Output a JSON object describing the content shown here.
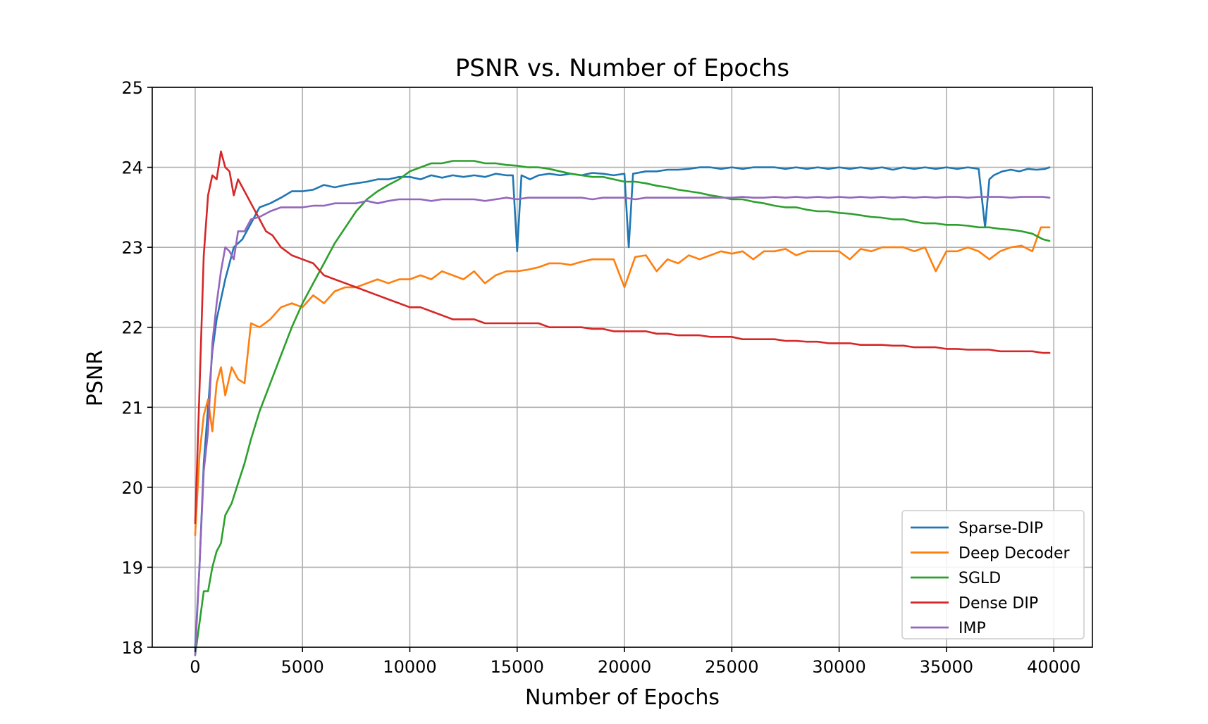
{
  "chart_data": {
    "type": "line",
    "title": "PSNR vs. Number of Epochs",
    "xlabel": "Number of Epochs",
    "ylabel": "PSNR",
    "xlim": [
      -2000,
      41800
    ],
    "ylim": [
      18,
      25
    ],
    "xticks": [
      0,
      5000,
      10000,
      15000,
      20000,
      25000,
      30000,
      35000,
      40000
    ],
    "yticks": [
      18,
      19,
      20,
      21,
      22,
      23,
      24,
      25
    ],
    "grid": true,
    "legend_position": "lower-right",
    "series": [
      {
        "name": "Sparse-DIP",
        "color": "#1f77b4",
        "x": [
          0,
          200,
          400,
          600,
          800,
          1000,
          1400,
          1800,
          2200,
          2600,
          3000,
          3500,
          4000,
          4500,
          5000,
          5500,
          6000,
          6500,
          7000,
          7500,
          8000,
          8500,
          9000,
          9500,
          10000,
          10500,
          11000,
          11500,
          12000,
          12500,
          13000,
          13500,
          14000,
          14500,
          14800,
          15000,
          15200,
          15600,
          16000,
          16500,
          17000,
          17500,
          18000,
          18500,
          19000,
          19500,
          20000,
          20200,
          20400,
          21000,
          21500,
          22000,
          22500,
          23000,
          23500,
          24000,
          24500,
          25000,
          25500,
          26000,
          26500,
          27000,
          27500,
          28000,
          28500,
          29000,
          29500,
          30000,
          30500,
          31000,
          31500,
          32000,
          32500,
          33000,
          33500,
          34000,
          34500,
          35000,
          35500,
          36000,
          36500,
          36800,
          37000,
          37200,
          37600,
          38000,
          38400,
          38800,
          39200,
          39600,
          39800
        ],
        "values": [
          18.0,
          19.0,
          20.3,
          21.0,
          21.7,
          22.1,
          22.6,
          23.0,
          23.1,
          23.3,
          23.5,
          23.55,
          23.62,
          23.7,
          23.7,
          23.72,
          23.78,
          23.75,
          23.78,
          23.8,
          23.82,
          23.85,
          23.85,
          23.88,
          23.88,
          23.85,
          23.9,
          23.87,
          23.9,
          23.88,
          23.9,
          23.88,
          23.92,
          23.9,
          23.9,
          22.95,
          23.9,
          23.85,
          23.9,
          23.92,
          23.9,
          23.92,
          23.9,
          23.93,
          23.92,
          23.9,
          23.92,
          23.0,
          23.92,
          23.95,
          23.95,
          23.97,
          23.97,
          23.98,
          24.0,
          24.0,
          23.98,
          24.0,
          23.98,
          24.0,
          24.0,
          24.0,
          23.98,
          24.0,
          23.98,
          24.0,
          23.98,
          24.0,
          23.98,
          24.0,
          23.98,
          24.0,
          23.97,
          24.0,
          23.98,
          24.0,
          23.98,
          24.0,
          23.98,
          24.0,
          23.98,
          23.25,
          23.85,
          23.9,
          23.95,
          23.97,
          23.95,
          23.98,
          23.97,
          23.98,
          24.0
        ]
      },
      {
        "name": "Deep Decoder",
        "color": "#ff7f0e",
        "x": [
          0,
          200,
          400,
          600,
          800,
          1000,
          1200,
          1400,
          1700,
          2000,
          2300,
          2600,
          3000,
          3500,
          4000,
          4500,
          5000,
          5500,
          6000,
          6500,
          7000,
          7500,
          8000,
          8500,
          9000,
          9500,
          10000,
          10500,
          11000,
          11500,
          12000,
          12500,
          13000,
          13500,
          14000,
          14500,
          15000,
          15500,
          16000,
          16500,
          17000,
          17500,
          18000,
          18500,
          19000,
          19500,
          20000,
          20500,
          21000,
          21500,
          22000,
          22500,
          23000,
          23500,
          24000,
          24500,
          25000,
          25500,
          26000,
          26500,
          27000,
          27500,
          28000,
          28500,
          29000,
          29500,
          30000,
          30500,
          31000,
          31500,
          32000,
          32500,
          33000,
          33500,
          34000,
          34500,
          35000,
          35500,
          36000,
          36500,
          37000,
          37500,
          38000,
          38500,
          39000,
          39400,
          39600,
          39800
        ],
        "values": [
          19.4,
          20.4,
          20.9,
          21.1,
          20.7,
          21.3,
          21.5,
          21.15,
          21.5,
          21.35,
          21.3,
          22.05,
          22.0,
          22.1,
          22.25,
          22.3,
          22.25,
          22.4,
          22.3,
          22.45,
          22.5,
          22.5,
          22.55,
          22.6,
          22.55,
          22.6,
          22.6,
          22.65,
          22.6,
          22.7,
          22.65,
          22.6,
          22.7,
          22.55,
          22.65,
          22.7,
          22.7,
          22.72,
          22.75,
          22.8,
          22.8,
          22.78,
          22.82,
          22.85,
          22.85,
          22.85,
          22.5,
          22.88,
          22.9,
          22.7,
          22.85,
          22.8,
          22.9,
          22.85,
          22.9,
          22.95,
          22.92,
          22.95,
          22.85,
          22.95,
          22.95,
          22.98,
          22.9,
          22.95,
          22.95,
          22.95,
          22.95,
          22.85,
          22.98,
          22.95,
          23.0,
          23.0,
          23.0,
          22.95,
          23.0,
          22.7,
          22.95,
          22.95,
          23.0,
          22.95,
          22.85,
          22.95,
          23.0,
          23.02,
          22.95,
          23.25,
          23.25,
          23.25
        ]
      },
      {
        "name": "SGLD",
        "color": "#2ca02c",
        "x": [
          0,
          200,
          400,
          600,
          800,
          1000,
          1200,
          1400,
          1700,
          2000,
          2300,
          2600,
          3000,
          3500,
          4000,
          4500,
          5000,
          5500,
          6000,
          6500,
          7000,
          7500,
          8000,
          8500,
          9000,
          9500,
          10000,
          10500,
          11000,
          11500,
          12000,
          12500,
          13000,
          13500,
          14000,
          14500,
          15000,
          15500,
          16000,
          16500,
          17000,
          17500,
          18000,
          18500,
          19000,
          19500,
          20000,
          20500,
          21000,
          21500,
          22000,
          22500,
          23000,
          23500,
          24000,
          24500,
          25000,
          25500,
          26000,
          26500,
          27000,
          27500,
          28000,
          28500,
          29000,
          29500,
          30000,
          30500,
          31000,
          31500,
          32000,
          32500,
          33000,
          33500,
          34000,
          34500,
          35000,
          35500,
          36000,
          36500,
          37000,
          37500,
          38000,
          38500,
          39000,
          39500,
          39800
        ],
        "values": [
          17.9,
          18.3,
          18.7,
          18.7,
          19.0,
          19.2,
          19.3,
          19.65,
          19.8,
          20.05,
          20.3,
          20.6,
          20.95,
          21.3,
          21.65,
          22.0,
          22.3,
          22.55,
          22.8,
          23.05,
          23.25,
          23.45,
          23.6,
          23.7,
          23.78,
          23.85,
          23.95,
          24.0,
          24.05,
          24.05,
          24.08,
          24.08,
          24.08,
          24.05,
          24.05,
          24.03,
          24.02,
          24.0,
          24.0,
          23.98,
          23.95,
          23.92,
          23.9,
          23.88,
          23.88,
          23.85,
          23.82,
          23.82,
          23.8,
          23.77,
          23.75,
          23.72,
          23.7,
          23.68,
          23.65,
          23.63,
          23.6,
          23.6,
          23.57,
          23.55,
          23.52,
          23.5,
          23.5,
          23.47,
          23.45,
          23.45,
          23.43,
          23.42,
          23.4,
          23.38,
          23.37,
          23.35,
          23.35,
          23.32,
          23.3,
          23.3,
          23.28,
          23.28,
          23.27,
          23.25,
          23.25,
          23.23,
          23.22,
          23.2,
          23.17,
          23.1,
          23.08
        ]
      },
      {
        "name": "Dense DIP",
        "color": "#d62728",
        "x": [
          0,
          200,
          400,
          600,
          800,
          1000,
          1200,
          1400,
          1600,
          1800,
          2000,
          2300,
          2600,
          3000,
          3300,
          3600,
          4000,
          4500,
          5000,
          5500,
          6000,
          6500,
          7000,
          7500,
          8000,
          8500,
          9000,
          9500,
          10000,
          10500,
          11000,
          11500,
          12000,
          12500,
          13000,
          13500,
          14000,
          14500,
          15000,
          15500,
          16000,
          16500,
          17000,
          17500,
          18000,
          18500,
          19000,
          19500,
          20000,
          20500,
          21000,
          21500,
          22000,
          22500,
          23000,
          23500,
          24000,
          24500,
          25000,
          25500,
          26000,
          26500,
          27000,
          27500,
          28000,
          28500,
          29000,
          29500,
          30000,
          30500,
          31000,
          31500,
          32000,
          32500,
          33000,
          33500,
          34000,
          34500,
          35000,
          35500,
          36000,
          36500,
          37000,
          37500,
          38000,
          38500,
          39000,
          39500,
          39800
        ],
        "values": [
          19.55,
          21.2,
          22.9,
          23.65,
          23.9,
          23.85,
          24.2,
          24.0,
          23.95,
          23.65,
          23.85,
          23.7,
          23.55,
          23.35,
          23.2,
          23.15,
          23.0,
          22.9,
          22.85,
          22.8,
          22.65,
          22.6,
          22.55,
          22.5,
          22.45,
          22.4,
          22.35,
          22.3,
          22.25,
          22.25,
          22.2,
          22.15,
          22.1,
          22.1,
          22.1,
          22.05,
          22.05,
          22.05,
          22.05,
          22.05,
          22.05,
          22.0,
          22.0,
          22.0,
          22.0,
          21.98,
          21.98,
          21.95,
          21.95,
          21.95,
          21.95,
          21.92,
          21.92,
          21.9,
          21.9,
          21.9,
          21.88,
          21.88,
          21.88,
          21.85,
          21.85,
          21.85,
          21.85,
          21.83,
          21.83,
          21.82,
          21.82,
          21.8,
          21.8,
          21.8,
          21.78,
          21.78,
          21.78,
          21.77,
          21.77,
          21.75,
          21.75,
          21.75,
          21.73,
          21.73,
          21.72,
          21.72,
          21.72,
          21.7,
          21.7,
          21.7,
          21.7,
          21.68,
          21.68
        ]
      },
      {
        "name": "IMP",
        "color": "#9467bd",
        "x": [
          0,
          200,
          400,
          600,
          800,
          1000,
          1200,
          1400,
          1600,
          1800,
          2000,
          2300,
          2600,
          3000,
          3500,
          4000,
          4500,
          5000,
          5500,
          6000,
          6500,
          7000,
          7500,
          8000,
          8500,
          9000,
          9500,
          10000,
          10500,
          11000,
          11500,
          12000,
          12500,
          13000,
          13500,
          14000,
          14500,
          15000,
          15500,
          16000,
          16500,
          17000,
          17500,
          18000,
          18500,
          19000,
          19500,
          20000,
          20500,
          21000,
          21500,
          22000,
          22500,
          23000,
          23500,
          24000,
          24500,
          25000,
          25500,
          26000,
          26500,
          27000,
          27500,
          28000,
          28500,
          29000,
          29500,
          30000,
          30500,
          31000,
          31500,
          32000,
          32500,
          33000,
          33500,
          34000,
          34500,
          35000,
          35500,
          36000,
          36500,
          37000,
          37500,
          38000,
          38500,
          39000,
          39500,
          39800
        ],
        "values": [
          17.9,
          19.0,
          20.2,
          20.7,
          21.8,
          22.3,
          22.7,
          23.0,
          22.95,
          22.85,
          23.2,
          23.2,
          23.35,
          23.38,
          23.45,
          23.5,
          23.5,
          23.5,
          23.52,
          23.52,
          23.55,
          23.55,
          23.55,
          23.58,
          23.55,
          23.58,
          23.6,
          23.6,
          23.6,
          23.58,
          23.6,
          23.6,
          23.6,
          23.6,
          23.58,
          23.6,
          23.62,
          23.6,
          23.62,
          23.62,
          23.62,
          23.62,
          23.62,
          23.62,
          23.6,
          23.62,
          23.62,
          23.62,
          23.6,
          23.62,
          23.62,
          23.62,
          23.62,
          23.62,
          23.62,
          23.62,
          23.62,
          23.62,
          23.63,
          23.62,
          23.62,
          23.63,
          23.62,
          23.63,
          23.62,
          23.63,
          23.62,
          23.63,
          23.62,
          23.63,
          23.62,
          23.63,
          23.62,
          23.63,
          23.62,
          23.63,
          23.62,
          23.63,
          23.63,
          23.62,
          23.63,
          23.63,
          23.63,
          23.62,
          23.63,
          23.63,
          23.63,
          23.62
        ]
      }
    ]
  }
}
